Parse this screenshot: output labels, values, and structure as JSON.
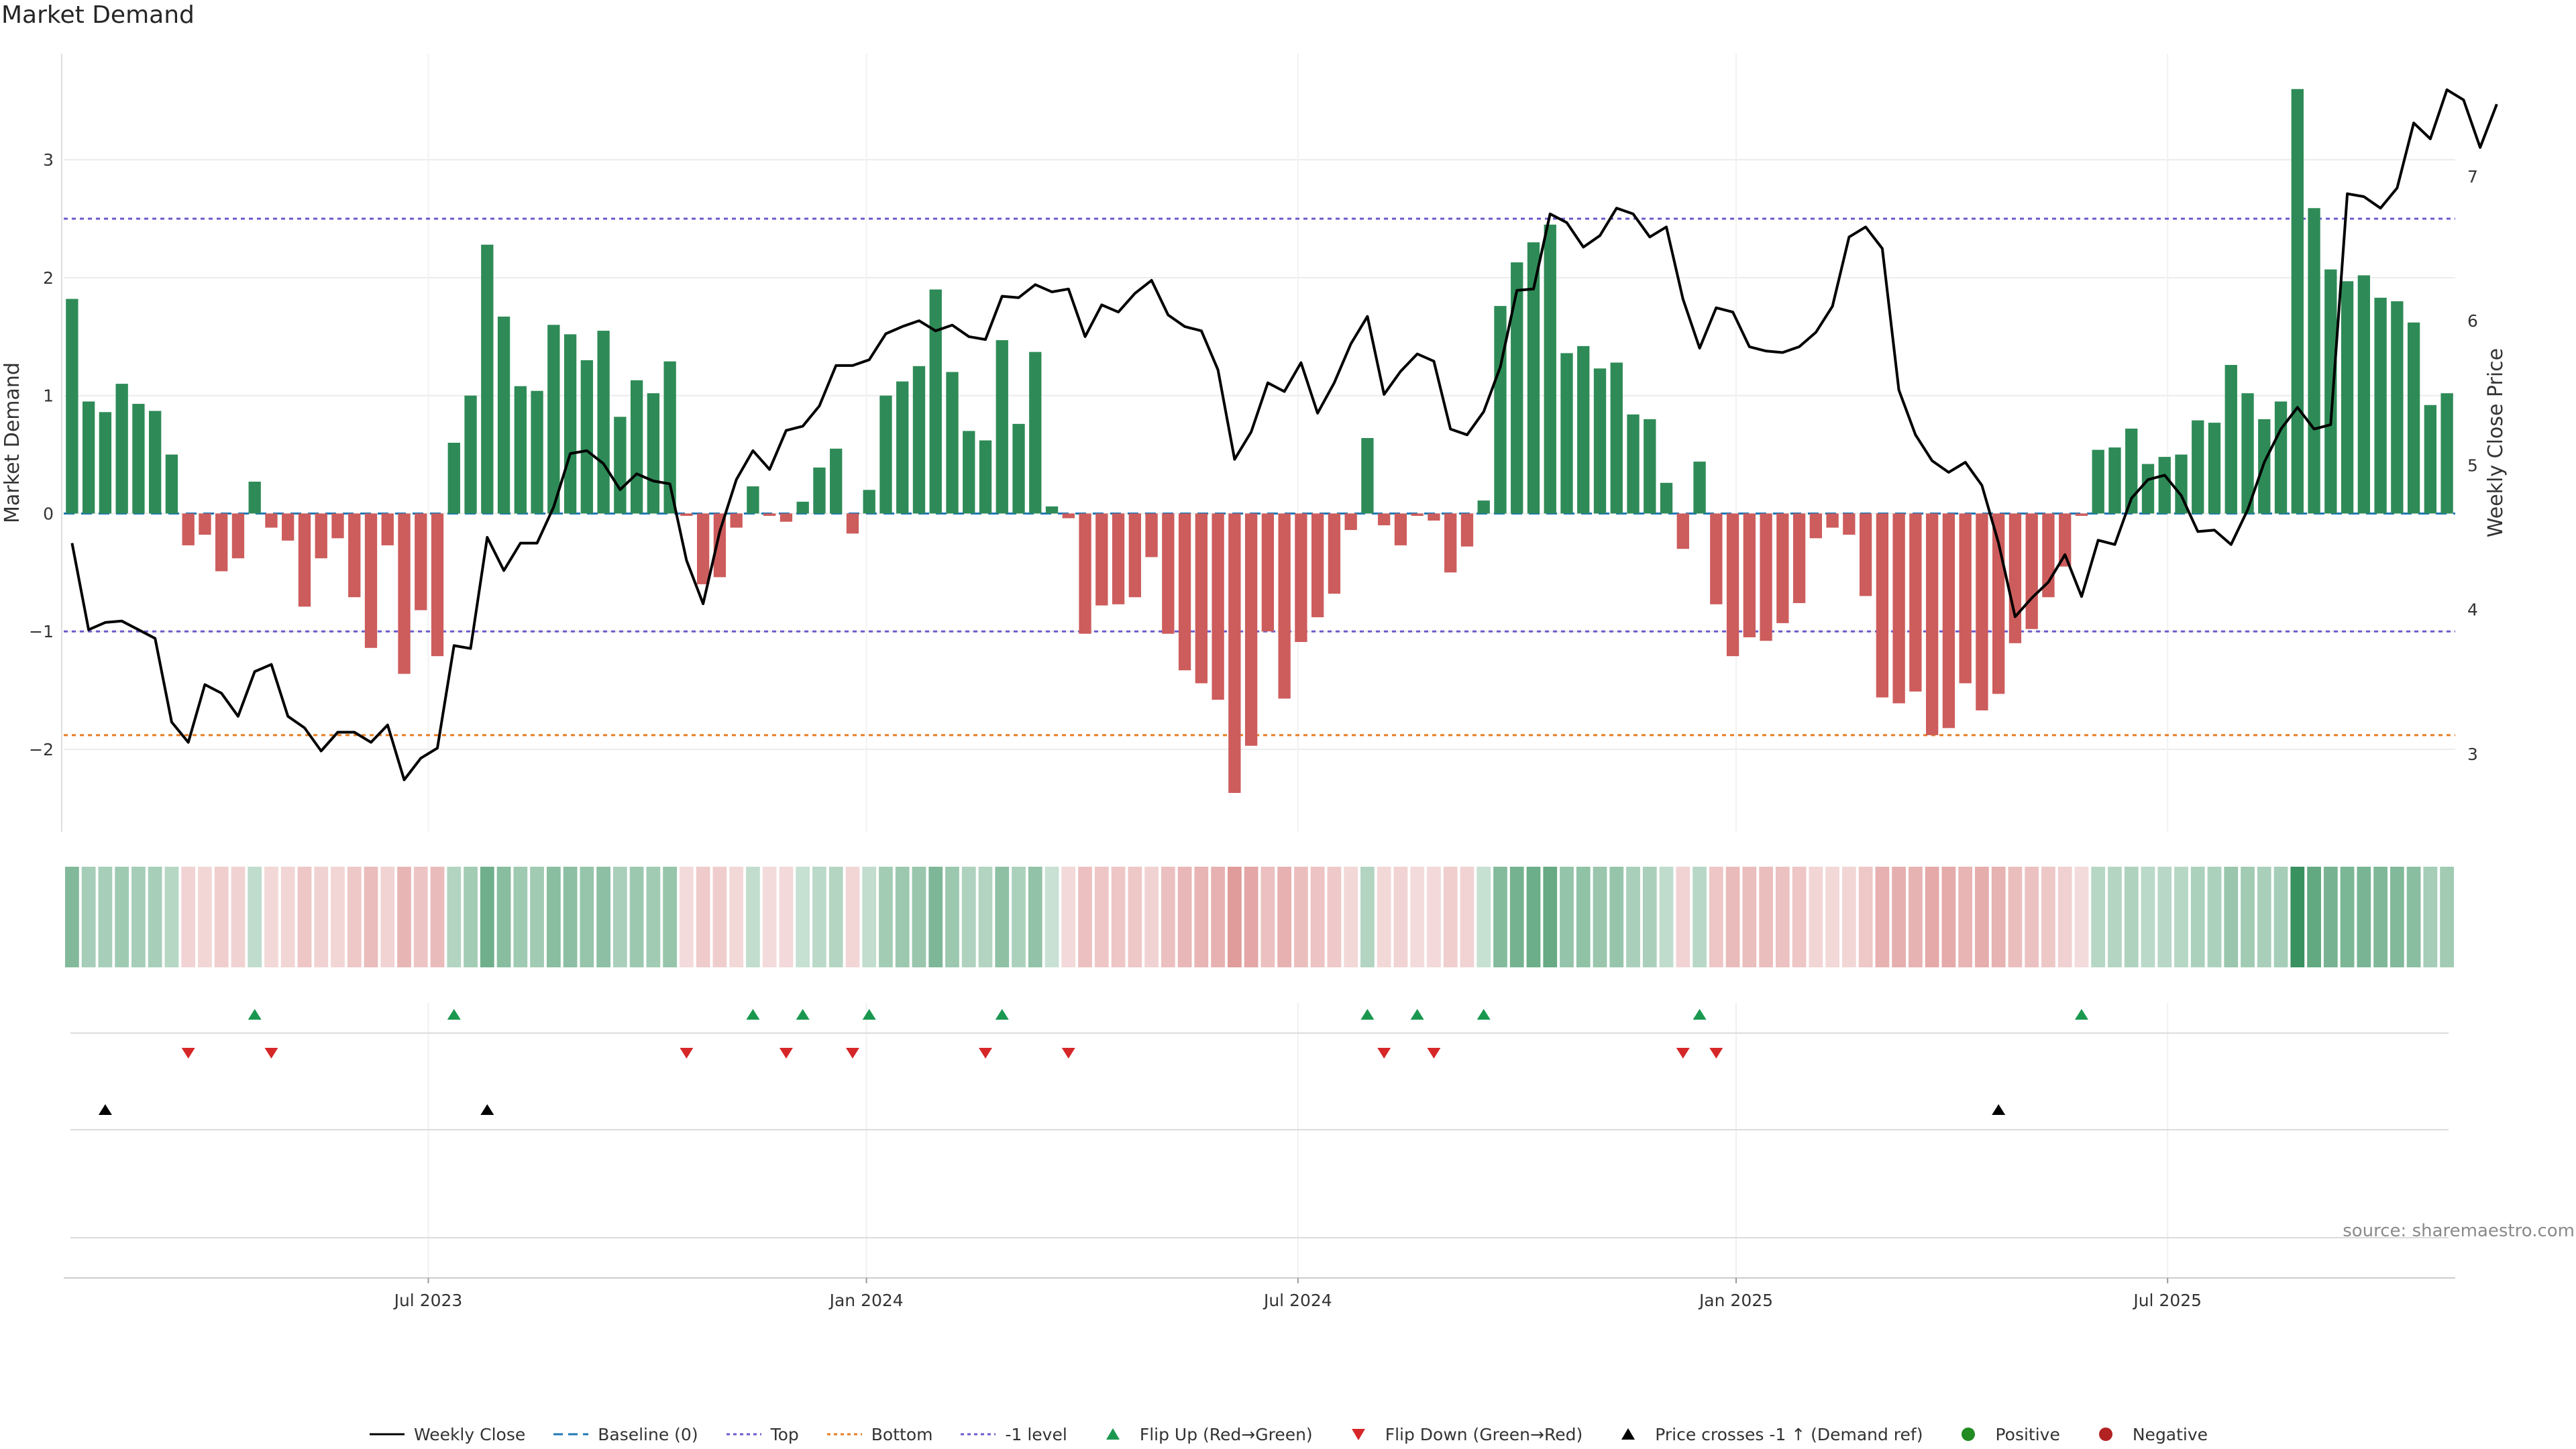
{
  "title": "Market Demand",
  "source": "source: sharemaestro.com",
  "colors": {
    "positive": "#2e8b57",
    "negative": "#cd5c5c",
    "close_line": "#000000",
    "baseline": "#1f77b4",
    "top": "#6a5acd",
    "bottom": "#e67e22",
    "minus1": "#6a5acd",
    "flip_up": "#1a9850",
    "flip_down": "#d62728",
    "dot_pos": "#228b22",
    "dot_neg": "#b22222"
  },
  "chart_data": {
    "type": "bar",
    "title": "Market Demand",
    "ylabel": "Market Demand",
    "y2label": "Weekly Close Price",
    "ylim": [
      -2.7,
      3.9
    ],
    "y2lim": [
      2.46,
      7.85
    ],
    "yticks": [
      -2,
      -1,
      0,
      1,
      2,
      3
    ],
    "ytick_labels": [
      "−2",
      "−1",
      "0",
      "1",
      "2",
      "3"
    ],
    "y2ticks": [
      3,
      4,
      5,
      6,
      7
    ],
    "y2tick_labels": [
      "3",
      "4",
      "5",
      "6",
      "7"
    ],
    "xlim": [
      0,
      143
    ],
    "x_ticks": [
      {
        "label": "Jul 2023",
        "pos": 21.8
      },
      {
        "label": "Jan 2024",
        "pos": 48.0
      },
      {
        "label": "Jul 2024",
        "pos": 73.8
      },
      {
        "label": "Jan 2025",
        "pos": 100.0
      },
      {
        "label": "Jul 2025",
        "pos": 125.8
      }
    ],
    "reference_lines": [
      {
        "name": "Baseline (0)",
        "value": 0,
        "style": "dashed"
      },
      {
        "name": "Top",
        "value": 2.5,
        "style": "dotted"
      },
      {
        "name": "Bottom",
        "value": -1.88,
        "style": "dotted"
      },
      {
        "name": "-1 level",
        "value": -1.0,
        "style": "dotted"
      }
    ],
    "demand": [
      1.82,
      0.95,
      0.86,
      1.1,
      0.93,
      0.87,
      0.5,
      -0.27,
      -0.18,
      -0.49,
      -0.38,
      0.27,
      -0.12,
      -0.23,
      -0.79,
      -0.38,
      -0.21,
      -0.71,
      -1.14,
      -0.27,
      -1.36,
      -0.82,
      -1.21,
      0.6,
      1.0,
      2.28,
      1.67,
      1.08,
      1.04,
      1.6,
      1.52,
      1.3,
      1.55,
      0.82,
      1.13,
      1.02,
      1.29,
      -0.02,
      -0.6,
      -0.54,
      -0.12,
      0.23,
      -0.02,
      -0.07,
      0.1,
      0.39,
      0.55,
      -0.17,
      0.2,
      1.0,
      1.12,
      1.25,
      1.9,
      1.2,
      0.7,
      0.62,
      1.47,
      0.76,
      1.37,
      0.06,
      -0.04,
      -1.02,
      -0.78,
      -0.77,
      -0.71,
      -0.37,
      -1.02,
      -1.33,
      -1.44,
      -1.58,
      -2.37,
      -1.97,
      -1.0,
      -1.57,
      -1.09,
      -0.88,
      -0.68,
      -0.14,
      0.64,
      -0.1,
      -0.27,
      -0.02,
      -0.06,
      -0.5,
      -0.28,
      0.11,
      1.76,
      2.13,
      2.3,
      2.45,
      1.36,
      1.42,
      1.23,
      1.28,
      0.84,
      0.8,
      0.26,
      -0.3,
      0.44,
      -0.77,
      -1.21,
      -1.05,
      -1.08,
      -0.93,
      -0.76,
      -0.21,
      -0.12,
      -0.18,
      -0.7,
      -1.56,
      -1.61,
      -1.51,
      -1.88,
      -1.82,
      -1.44,
      -1.67,
      -1.53,
      -1.1,
      -0.98,
      -0.71,
      -0.45,
      -0.02,
      0.54,
      0.56,
      0.72,
      0.42,
      0.48,
      0.5,
      0.79,
      0.77,
      1.26,
      1.02,
      0.8,
      0.95,
      3.6,
      2.59,
      2.07,
      1.97,
      2.02,
      1.83,
      1.8,
      1.62,
      0.92,
      1.02
    ],
    "weekly_close": [
      4.46,
      3.86,
      3.91,
      3.92,
      3.86,
      3.8,
      3.22,
      3.08,
      3.48,
      3.42,
      3.26,
      3.57,
      3.62,
      3.26,
      3.18,
      3.02,
      3.15,
      3.15,
      3.08,
      3.2,
      2.82,
      2.97,
      3.04,
      3.75,
      3.73,
      4.5,
      4.27,
      4.46,
      4.46,
      4.71,
      5.08,
      5.1,
      5.01,
      4.83,
      4.94,
      4.89,
      4.87,
      4.34,
      4.04,
      4.54,
      4.9,
      5.1,
      4.97,
      5.24,
      5.27,
      5.41,
      5.69,
      5.69,
      5.73,
      5.91,
      5.96,
      6.0,
      5.93,
      5.97,
      5.89,
      5.87,
      6.17,
      6.16,
      6.25,
      6.2,
      6.22,
      5.89,
      6.11,
      6.06,
      6.19,
      6.28,
      6.04,
      5.96,
      5.93,
      5.66,
      5.04,
      5.23,
      5.57,
      5.51,
      5.71,
      5.36,
      5.57,
      5.84,
      6.03,
      5.49,
      5.65,
      5.77,
      5.72,
      5.25,
      5.21,
      5.37,
      5.68,
      6.21,
      6.22,
      6.74,
      6.68,
      6.51,
      6.59,
      6.78,
      6.74,
      6.58,
      6.65,
      6.15,
      5.81,
      6.09,
      6.06,
      5.82,
      5.79,
      5.78,
      5.82,
      5.92,
      6.1,
      6.58,
      6.65,
      6.5,
      5.52,
      5.21,
      5.03,
      4.95,
      5.02,
      4.86,
      4.46,
      3.95,
      4.08,
      4.19,
      4.38,
      4.09,
      4.48,
      4.45,
      4.77,
      4.9,
      4.93,
      4.79,
      4.54,
      4.55,
      4.45,
      4.69,
      5.02,
      5.25,
      5.4,
      5.25,
      5.28,
      6.88,
      6.86,
      6.78,
      6.92,
      7.37,
      7.26,
      7.6,
      7.53,
      7.2,
      7.5
    ],
    "flip_up_x": [
      11,
      23,
      41,
      44,
      48,
      56,
      78,
      81,
      85,
      98,
      121
    ],
    "flip_down_x": [
      7,
      12,
      37,
      43,
      47,
      55,
      60,
      79,
      82,
      97,
      99
    ],
    "price_cross_x": [
      2,
      25,
      116
    ],
    "legend": [
      {
        "key": "close",
        "label": "Weekly Close"
      },
      {
        "key": "baseline",
        "label": "Baseline (0)"
      },
      {
        "key": "top",
        "label": "Top"
      },
      {
        "key": "bottom",
        "label": "Bottom"
      },
      {
        "key": "minus1",
        "label": "-1 level"
      },
      {
        "key": "flipup",
        "label": "Flip Up (Red→Green)"
      },
      {
        "key": "flipdown",
        "label": "Flip Down (Green→Red)"
      },
      {
        "key": "cross",
        "label": "Price crosses -1 ↑ (Demand ref)"
      },
      {
        "key": "pos",
        "label": "Positive"
      },
      {
        "key": "neg",
        "label": "Negative"
      }
    ]
  }
}
